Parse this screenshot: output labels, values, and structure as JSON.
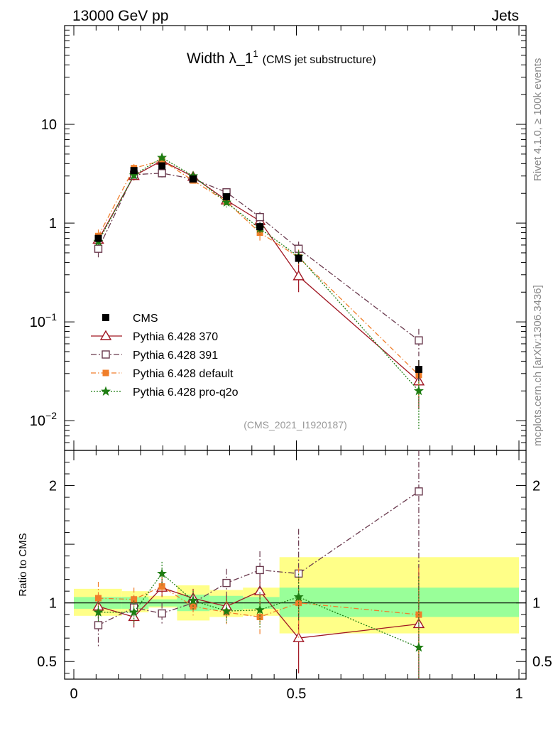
{
  "header": {
    "left": "13000 GeV pp",
    "right": "Jets"
  },
  "side": {
    "rivet": "Rivet 4.1.0, ≥ 100k events",
    "mcplots": "mcplots.cern.ch [arXiv:1306.3436]"
  },
  "chart_data": {
    "type": "scatter",
    "title_main": "Width λ_1",
    "title_sup": "1",
    "title_sub": "(CMS jet substructure)",
    "analysis_id": "(CMS_2021_I1920187)",
    "xlim": [
      0,
      1
    ],
    "x_ticks": [
      {
        "v": 0,
        "label": "0"
      },
      {
        "v": 0.5,
        "label": "0.5"
      },
      {
        "v": 1,
        "label": "1"
      }
    ],
    "main": {
      "yscale": "log",
      "ylim": [
        0.005,
        100
      ],
      "y_ticks": [
        {
          "v": 0.01,
          "base": "10",
          "exp": "−2"
        },
        {
          "v": 0.1,
          "base": "10",
          "exp": "−1"
        },
        {
          "v": 1,
          "label": "1"
        },
        {
          "v": 10,
          "label": "10"
        }
      ]
    },
    "ratio": {
      "ylabel": "Ratio to CMS",
      "ylim": [
        0.35,
        2.3
      ],
      "y_ticks": [
        {
          "v": 0.5,
          "label": "0.5"
        },
        {
          "v": 1,
          "label": "1"
        },
        {
          "v": 2,
          "label": "2"
        }
      ],
      "bands": [
        {
          "x0": 0.0,
          "x1": 0.108,
          "g": [
            0.95,
            1.05
          ],
          "y": [
            0.89,
            1.12
          ]
        },
        {
          "x0": 0.108,
          "x1": 0.168,
          "g": [
            0.95,
            1.05
          ],
          "y": [
            0.92,
            1.1
          ]
        },
        {
          "x0": 0.168,
          "x1": 0.232,
          "g": [
            0.97,
            1.03
          ],
          "y": [
            0.96,
            1.06
          ]
        },
        {
          "x0": 0.232,
          "x1": 0.305,
          "g": [
            0.93,
            1.07
          ],
          "y": [
            0.85,
            1.15
          ]
        },
        {
          "x0": 0.305,
          "x1": 0.38,
          "g": [
            0.94,
            1.06
          ],
          "y": [
            0.88,
            1.11
          ]
        },
        {
          "x0": 0.38,
          "x1": 0.462,
          "g": [
            0.95,
            1.05
          ],
          "y": [
            0.89,
            1.13
          ]
        },
        {
          "x0": 0.462,
          "x1": 1.0,
          "g": [
            0.88,
            1.13
          ],
          "y": [
            0.74,
            1.39
          ]
        }
      ]
    },
    "x": [
      0.055,
      0.135,
      0.198,
      0.268,
      0.343,
      0.418,
      0.505,
      0.775
    ],
    "data": {
      "name": "CMS",
      "values": [
        0.7,
        3.4,
        3.8,
        2.8,
        1.85,
        0.92,
        0.44,
        0.033
      ],
      "errors": [
        0.05,
        0.2,
        0.25,
        0.2,
        0.15,
        0.1,
        0.05,
        0.008
      ]
    },
    "series": [
      {
        "name": "Pythia 6.428 370",
        "color": "#a01622",
        "dash": "",
        "marker": "triangle",
        "values": [
          0.68,
          3.0,
          4.3,
          2.95,
          1.7,
          1.05,
          0.29,
          0.025
        ],
        "errors": [
          0.07,
          0.3,
          0.3,
          0.25,
          0.18,
          0.15,
          0.09,
          0.012
        ],
        "ratio": [
          0.97,
          0.88,
          1.13,
          1.04,
          0.97,
          1.1,
          0.7,
          0.82
        ],
        "ratio_err": [
          0.1,
          0.09,
          0.08,
          0.08,
          0.1,
          0.16,
          0.3,
          0.5
        ]
      },
      {
        "name": "Pythia 6.428 391",
        "color": "#6a3a4e",
        "dash": "8,3,2,3",
        "marker": "square",
        "values": [
          0.55,
          3.1,
          3.2,
          2.8,
          2.05,
          1.15,
          0.55,
          0.065
        ],
        "errors": [
          0.12,
          0.3,
          0.3,
          0.2,
          0.2,
          0.15,
          0.1,
          0.02
        ],
        "ratio": [
          0.81,
          0.96,
          0.91,
          1.0,
          1.17,
          1.28,
          1.25,
          1.95
        ],
        "ratio_err": [
          0.19,
          0.1,
          0.09,
          0.08,
          0.12,
          0.16,
          0.38,
          1.2
        ]
      },
      {
        "name": "Pythia 6.428 default",
        "color": "#f07e2a",
        "dash": "7,3,1.5,3",
        "marker": "filled-square",
        "values": [
          0.74,
          3.6,
          4.3,
          2.7,
          1.65,
          0.8,
          0.45,
          0.029
        ],
        "errors": [
          0.12,
          0.35,
          0.35,
          0.2,
          0.18,
          0.15,
          0.09,
          0.012
        ],
        "ratio": [
          1.04,
          1.03,
          1.14,
          0.97,
          0.92,
          0.88,
          1.0,
          0.9
        ],
        "ratio_err": [
          0.14,
          0.1,
          0.09,
          0.08,
          0.1,
          0.16,
          0.3,
          0.4
        ]
      },
      {
        "name": "Pythia 6.428 pro-q2o",
        "color": "#1e7d12",
        "dash": "2,2",
        "marker": "star",
        "values": [
          0.65,
          3.05,
          4.6,
          3.0,
          1.62,
          0.88,
          0.46,
          0.02
        ],
        "errors": [
          0.06,
          0.3,
          0.35,
          0.22,
          0.18,
          0.12,
          0.07,
          0.012
        ],
        "ratio": [
          0.92,
          0.92,
          1.25,
          1.02,
          0.93,
          0.94,
          1.05,
          0.62
        ],
        "ratio_err": [
          0.08,
          0.1,
          0.1,
          0.08,
          0.1,
          0.15,
          0.2,
          0.6
        ]
      }
    ]
  }
}
